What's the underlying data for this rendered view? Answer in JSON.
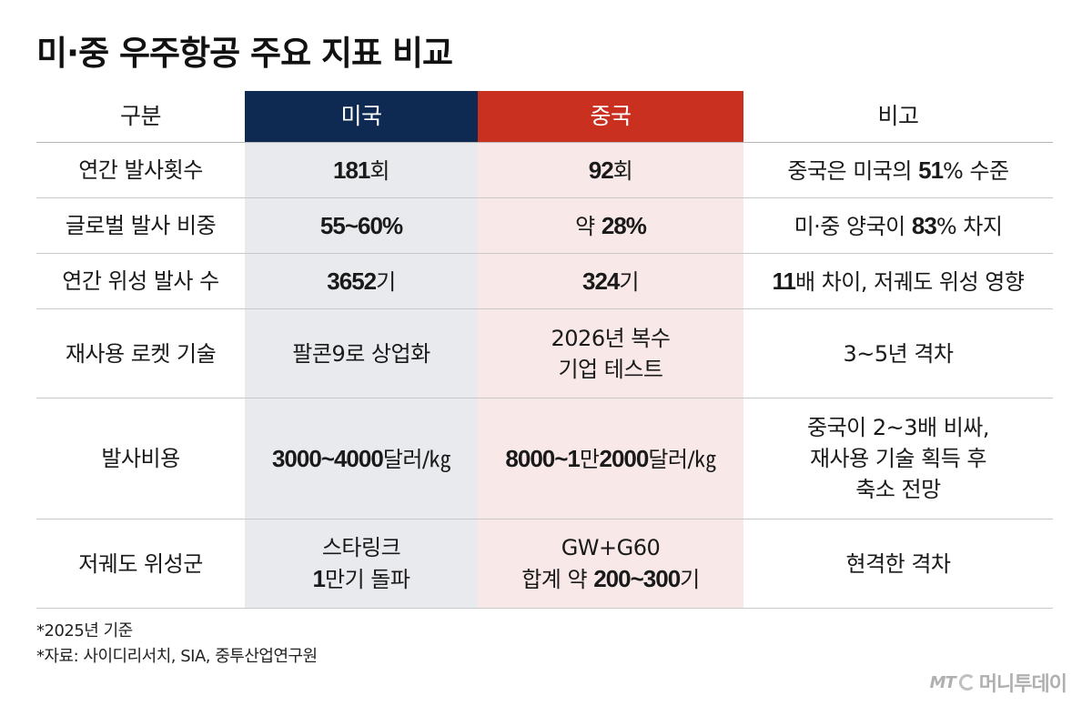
{
  "title": "미·중 우주항공 주요 지표 비교",
  "header": {
    "c0": "구분",
    "c1": "미국",
    "c2": "중국",
    "c3": "비고"
  },
  "colors": {
    "us": "#0e2a52",
    "cn": "#c9301f",
    "us_bg": "#e9eaee",
    "cn_bg": "#f8e8e8"
  },
  "rows": [
    {
      "label": "연간 발사횟수",
      "us": [
        {
          "t": "181",
          "b": true
        },
        {
          "t": "회",
          "b": false
        }
      ],
      "cn": [
        {
          "t": "92",
          "b": true
        },
        {
          "t": "회",
          "b": false
        }
      ],
      "note": [
        {
          "t": "중국은 미국의 ",
          "b": false
        },
        {
          "t": "51",
          "b": true
        },
        {
          "t": "% 수준",
          "b": false
        }
      ]
    },
    {
      "label": "글로벌 발사 비중",
      "us": [
        {
          "t": "55~60%",
          "b": true
        }
      ],
      "cn": [
        {
          "t": "약 ",
          "b": false
        },
        {
          "t": "28%",
          "b": true
        }
      ],
      "note": [
        {
          "t": "미·중 양국이 ",
          "b": false
        },
        {
          "t": "83",
          "b": true
        },
        {
          "t": "% 차지",
          "b": false
        }
      ]
    },
    {
      "label": "연간 위성 발사 수",
      "us": [
        {
          "t": "3652",
          "b": true
        },
        {
          "t": "기",
          "b": false
        }
      ],
      "cn": [
        {
          "t": "324",
          "b": true
        },
        {
          "t": "기",
          "b": false
        }
      ],
      "note": [
        {
          "t": "11",
          "b": true
        },
        {
          "t": "배 차이, 저궤도 위성 영향",
          "b": false
        }
      ]
    },
    {
      "label": "재사용 로켓 기술",
      "us": [
        {
          "t": "팔콘9로 상업화",
          "b": false
        }
      ],
      "cn": [
        {
          "t": "2026년 복수",
          "b": false
        },
        {
          "br": true
        },
        {
          "t": "기업 테스트",
          "b": false
        }
      ],
      "note": [
        {
          "t": "3~5년 격차",
          "b": false
        }
      ]
    },
    {
      "label": "발사비용",
      "us": [
        {
          "t": "3000~4000",
          "b": true
        },
        {
          "t": "달러/㎏",
          "b": false
        }
      ],
      "cn": [
        {
          "t": "8000~1",
          "b": true
        },
        {
          "t": "만",
          "b": false
        },
        {
          "t": "2000",
          "b": true
        },
        {
          "t": "달러/㎏",
          "b": false
        }
      ],
      "note": [
        {
          "t": "중국이 2~3배 비싸,",
          "b": false
        },
        {
          "br": true
        },
        {
          "t": "재사용 기술 획득 후",
          "b": false
        },
        {
          "br": true
        },
        {
          "t": "축소 전망",
          "b": false
        }
      ]
    },
    {
      "label": "저궤도 위성군",
      "us": [
        {
          "t": "스타링크",
          "b": false
        },
        {
          "br": true
        },
        {
          "t": "1",
          "b": true
        },
        {
          "t": "만기 돌파",
          "b": false
        }
      ],
      "cn": [
        {
          "t": "GW+G60",
          "b": false
        },
        {
          "br": true
        },
        {
          "t": "합계 약 ",
          "b": false
        },
        {
          "t": "200~300",
          "b": true
        },
        {
          "t": "기",
          "b": false
        }
      ],
      "note": [
        {
          "t": "현격한 격차",
          "b": false
        }
      ]
    }
  ],
  "notes": {
    "basis": "*2025년 기준",
    "source": "*자료: 사이디리서치, SIA, 중투산업연구원"
  },
  "logo": {
    "mt": "MT",
    "name": "머니투데이"
  }
}
